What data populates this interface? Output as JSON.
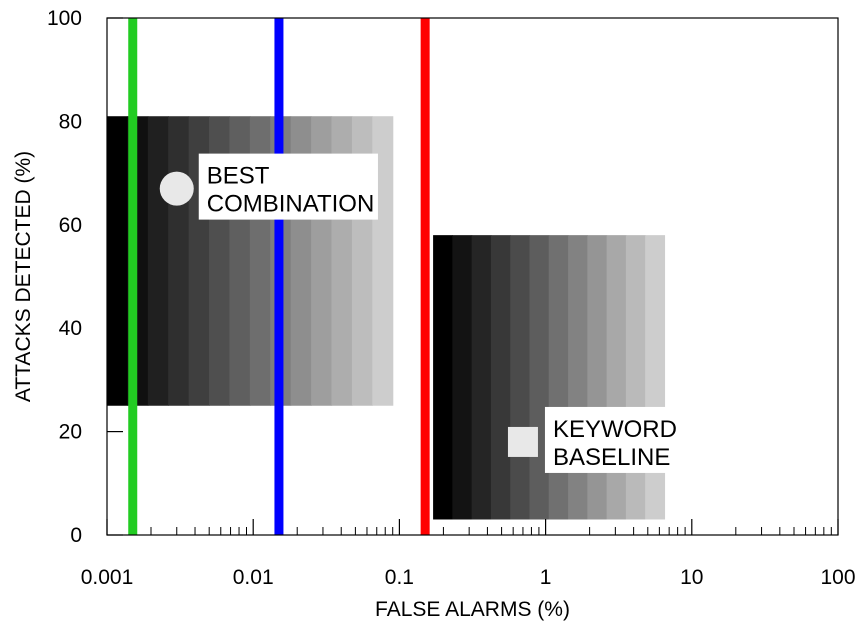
{
  "chart_data": {
    "type": "scatter",
    "xscale": "log",
    "xlim": [
      0.001,
      100
    ],
    "ylim": [
      0,
      100
    ],
    "xlabel": "FALSE ALARMS (%)",
    "ylabel": "ATTACKS DETECTED (%)",
    "x_ticks": [
      {
        "value": 0.001,
        "label": "0.001"
      },
      {
        "value": 0.01,
        "label": "0.01"
      },
      {
        "value": 0.1,
        "label": "0.1"
      },
      {
        "value": 1,
        "label": "1"
      },
      {
        "value": 10,
        "label": "10"
      },
      {
        "value": 100,
        "label": "100"
      }
    ],
    "y_ticks": [
      {
        "value": 0,
        "label": "0"
      },
      {
        "value": 20,
        "label": "20"
      },
      {
        "value": 40,
        "label": "40"
      },
      {
        "value": 60,
        "label": "60"
      },
      {
        "value": 80,
        "label": "80"
      },
      {
        "value": 100,
        "label": "100"
      }
    ],
    "grid": false,
    "vertical_lines": [
      {
        "x": 0.0015,
        "color": "#22cc22"
      },
      {
        "x": 0.015,
        "color": "#0000ff"
      },
      {
        "x": 0.15,
        "color": "#ff0000"
      }
    ],
    "shaded_regions": [
      {
        "x_range": [
          0.001,
          0.09
        ],
        "y_range": [
          25,
          81
        ],
        "steps": 14
      },
      {
        "x_range": [
          0.17,
          6.5
        ],
        "y_range": [
          3,
          58
        ],
        "steps": 12
      }
    ],
    "points": [
      {
        "x": 0.003,
        "y": 67,
        "shape": "circle",
        "color": "#e8e8e8",
        "label_lines": [
          "BEST",
          "COMBINATION"
        ],
        "label_position": "right"
      },
      {
        "x": 0.7,
        "y": 18,
        "shape": "square",
        "color": "#e8e8e8",
        "label_lines": [
          "KEYWORD",
          "BASELINE"
        ],
        "label_position": "right"
      }
    ]
  }
}
